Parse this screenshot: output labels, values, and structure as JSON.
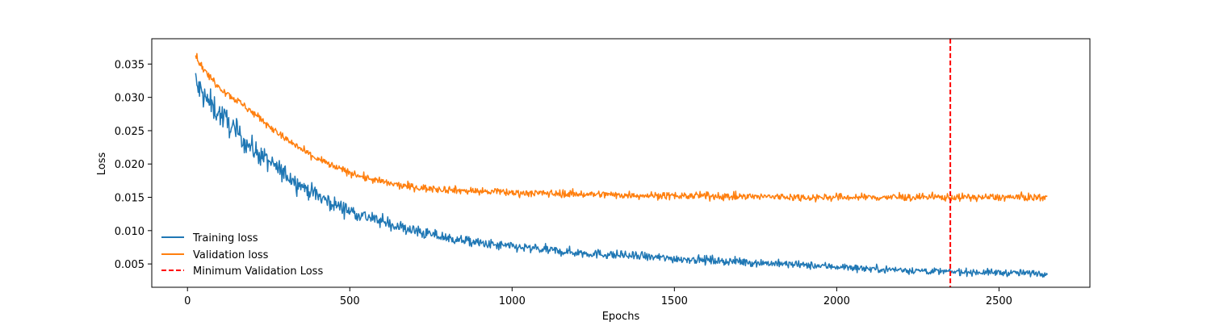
{
  "chart_data": {
    "type": "line",
    "title": "",
    "xlabel": "Epochs",
    "ylabel": "Loss",
    "xlim": [
      -110,
      2780
    ],
    "ylim": [
      0.0015,
      0.0388
    ],
    "xticks": [
      0,
      500,
      1000,
      1500,
      2000,
      2500
    ],
    "xtick_labels": [
      "0",
      "500",
      "1000",
      "1500",
      "2000",
      "2500"
    ],
    "yticks": [
      0.005,
      0.01,
      0.015,
      0.02,
      0.025,
      0.03,
      0.035
    ],
    "ytick_labels": [
      "0.005",
      "0.010",
      "0.015",
      "0.020",
      "0.025",
      "0.030",
      "0.035"
    ],
    "grid": false,
    "legend_position": "bottom-left",
    "series": [
      {
        "name": "Training loss",
        "color": "#1f77b4",
        "x": [
          25,
          30,
          40,
          50,
          60,
          80,
          100,
          125,
          150,
          175,
          200,
          250,
          300,
          350,
          400,
          450,
          500,
          550,
          600,
          650,
          700,
          750,
          800,
          850,
          900,
          950,
          1000,
          1100,
          1200,
          1300,
          1400,
          1500,
          1600,
          1700,
          1800,
          1900,
          2000,
          2100,
          2200,
          2300,
          2350,
          2400,
          2500,
          2600,
          2650
        ],
        "y": [
          0.0325,
          0.0315,
          0.031,
          0.0302,
          0.0295,
          0.0285,
          0.0275,
          0.0262,
          0.0248,
          0.0235,
          0.0223,
          0.0203,
          0.0185,
          0.0168,
          0.0153,
          0.014,
          0.013,
          0.0121,
          0.0113,
          0.0106,
          0.0099,
          0.0094,
          0.0089,
          0.0085,
          0.0081,
          0.0078,
          0.0076,
          0.0071,
          0.0067,
          0.0064,
          0.0061,
          0.0058,
          0.0056,
          0.0053,
          0.0051,
          0.0048,
          0.0046,
          0.0043,
          0.0041,
          0.0039,
          0.0038,
          0.0038,
          0.0037,
          0.0036,
          0.0036
        ]
      },
      {
        "name": "Validation loss",
        "color": "#ff7f0e",
        "x": [
          25,
          30,
          40,
          50,
          60,
          80,
          100,
          125,
          150,
          175,
          200,
          250,
          300,
          350,
          400,
          450,
          500,
          550,
          600,
          650,
          700,
          750,
          800,
          850,
          900,
          950,
          1000,
          1100,
          1200,
          1300,
          1400,
          1500,
          1600,
          1700,
          1800,
          1900,
          2000,
          2100,
          2200,
          2300,
          2350,
          2400,
          2500,
          2600,
          2650
        ],
        "y": [
          0.0365,
          0.0358,
          0.035,
          0.0342,
          0.0335,
          0.0325,
          0.0315,
          0.0305,
          0.0296,
          0.0287,
          0.0278,
          0.0258,
          0.0238,
          0.0222,
          0.0208,
          0.0196,
          0.0187,
          0.0179,
          0.0173,
          0.0168,
          0.0165,
          0.0163,
          0.0162,
          0.016,
          0.0159,
          0.0158,
          0.0157,
          0.0156,
          0.0155,
          0.0154,
          0.0153,
          0.0152,
          0.0152,
          0.0151,
          0.0151,
          0.015,
          0.015,
          0.015,
          0.015,
          0.015,
          0.015,
          0.015,
          0.015,
          0.015,
          0.015
        ]
      },
      {
        "name": "Minimum Validation Loss",
        "color": "#ff0000",
        "style": "dashed",
        "type": "vline",
        "x_value": 2350
      }
    ]
  }
}
